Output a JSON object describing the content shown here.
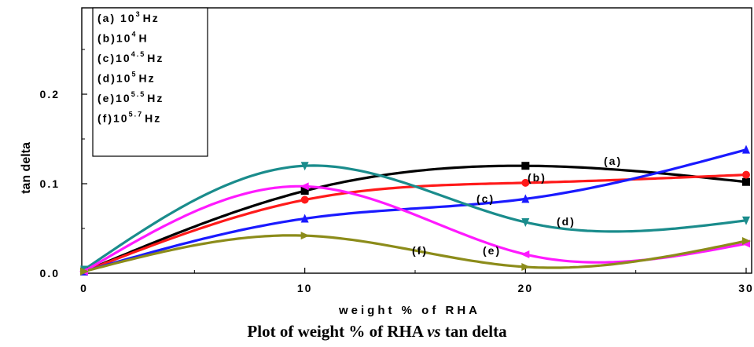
{
  "chart_data": {
    "type": "line",
    "xlabel": "weight % of RHA",
    "ylabel": "tan delta",
    "xlim": [
      0,
      30
    ],
    "ylim": [
      0,
      0.3
    ],
    "x_ticks": [
      "0",
      "10",
      "20",
      "30"
    ],
    "y_ticks": [
      "0.0",
      "0.1",
      "0.2"
    ],
    "x_ticks_val": [
      0,
      10,
      20,
      30
    ],
    "y_ticks_val": [
      0,
      0.1,
      0.2
    ],
    "grid": false,
    "legend_position": "top-left",
    "legend": [
      {
        "label": "(a) 10",
        "sup": "3",
        "unit": "Hz"
      },
      {
        "label": "(b)10",
        "sup": "4",
        "unit": "H"
      },
      {
        "label": "(c)10",
        "sup": "4.5",
        "unit": "Hz"
      },
      {
        "label": "(d)10",
        "sup": "5",
        "unit": "Hz"
      },
      {
        "label": "(e)10",
        "sup": "5.5",
        "unit": "Hz"
      },
      {
        "label": "(f)10",
        "sup": "5.7",
        "unit": "Hz"
      }
    ],
    "series": [
      {
        "name": "(a)",
        "color": "#000000",
        "marker": "square",
        "x": [
          0,
          10,
          20,
          30
        ],
        "values": [
          0.002,
          0.092,
          0.12,
          0.102
        ]
      },
      {
        "name": "(b)",
        "color": "#ff1a1a",
        "marker": "circle",
        "x": [
          0,
          10,
          20,
          30
        ],
        "values": [
          0.002,
          0.082,
          0.101,
          0.11
        ]
      },
      {
        "name": "(c)",
        "color": "#1a1aff",
        "marker": "triangle-up",
        "x": [
          0,
          10,
          20,
          30
        ],
        "values": [
          0.002,
          0.061,
          0.083,
          0.138
        ]
      },
      {
        "name": "(d)",
        "color": "#1a8c8c",
        "marker": "triangle-down",
        "x": [
          0,
          10,
          20,
          30
        ],
        "values": [
          0.004,
          0.12,
          0.057,
          0.059
        ]
      },
      {
        "name": "(e)",
        "color": "#ff1aff",
        "marker": "triangle-left",
        "x": [
          0,
          10,
          20,
          30
        ],
        "values": [
          0.002,
          0.097,
          0.021,
          0.033
        ]
      },
      {
        "name": "(f)",
        "color": "#8c8c1a",
        "marker": "triangle-right",
        "x": [
          0,
          10,
          20,
          30
        ],
        "values": [
          0.002,
          0.042,
          0.007,
          0.036
        ]
      }
    ],
    "annotations": [
      "(a)",
      "(b)",
      "(c)",
      "(d)",
      "(e)",
      "(f)"
    ]
  },
  "caption": {
    "pre": "Plot of weight % of RHA ",
    "vs": "vs",
    "post": " tan delta"
  }
}
